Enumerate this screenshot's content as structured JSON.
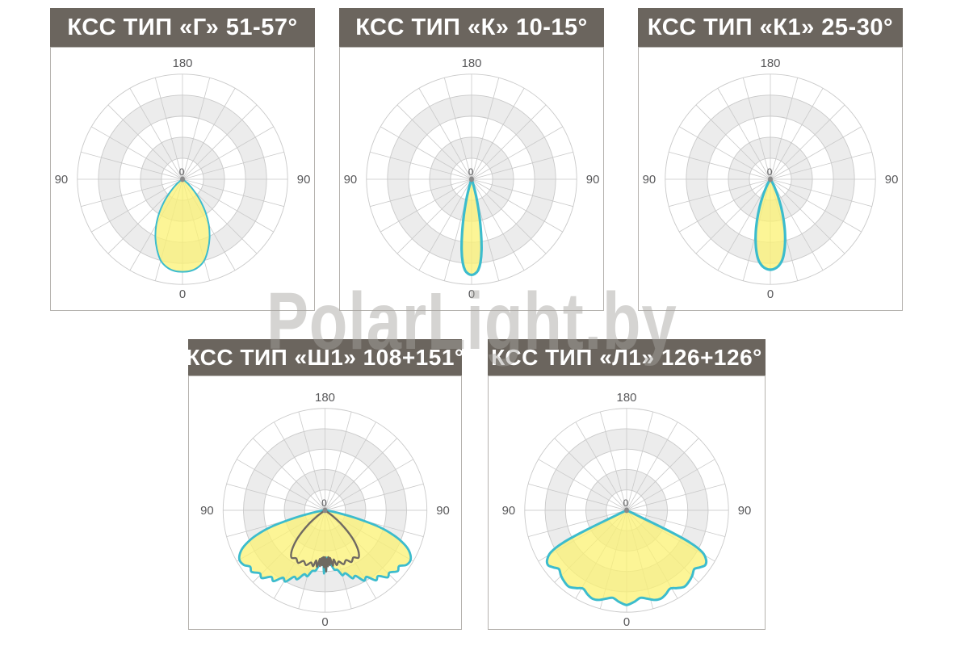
{
  "watermark": "PolarLight.by",
  "colors": {
    "header_bg": "#6b655e",
    "title_text": "#ffffff",
    "panel_border": "#b5b2ae",
    "grid_line": "#c9c9c9",
    "grid_band": "#ececec",
    "axis_label": "#58585a",
    "curve_cyan": "#3cbccd",
    "curve_gray": "#6f6962",
    "lobe_fill": "#fbf173",
    "center_dot": "#8a8a8a"
  },
  "axis_labels": {
    "top": "180",
    "left": "90",
    "right": "90",
    "bottom": "0",
    "center": "0"
  },
  "charts": [
    {
      "title": "КСС ТИП «Г» 51-57°",
      "kcc_type": "Г",
      "beam_angle": "51-57°"
    },
    {
      "title": "КСС ТИП «К» 10-15°",
      "kcc_type": "К",
      "beam_angle": "10-15°"
    },
    {
      "title": "КСС ТИП «К1» 25-30°",
      "kcc_type": "К1",
      "beam_angle": "25-30°"
    },
    {
      "title": "КСС ТИП «Ш1» 108+151°",
      "kcc_type": "Ш1",
      "beam_angle": "108+151°"
    },
    {
      "title": "КСС ТИП «Л1» 126+126°",
      "kcc_type": "Л1",
      "beam_angle": "126+126°"
    }
  ],
  "chart_data": [
    {
      "type": "polar",
      "title": "КСС ТИП «Г» 51-57°",
      "rings": 5,
      "spoke_step_deg": 15,
      "angle_convention": "degrees from nadir (0 = straight down), negative = left",
      "r_unit": "fraction of outer radius",
      "series": [
        {
          "name": "luminous-intensity-curve",
          "color": "#3cbccd",
          "fill": "#fbf173",
          "stroke_width": 2,
          "points": [
            [
              -57,
              0.02
            ],
            [
              -50,
              0.08
            ],
            [
              -45,
              0.15
            ],
            [
              -40,
              0.26
            ],
            [
              -35,
              0.38
            ],
            [
              -30,
              0.5
            ],
            [
              -25,
              0.61
            ],
            [
              -20,
              0.71
            ],
            [
              -15,
              0.8
            ],
            [
              -10,
              0.85
            ],
            [
              -5,
              0.875
            ],
            [
              0,
              0.88
            ],
            [
              5,
              0.875
            ],
            [
              10,
              0.85
            ],
            [
              15,
              0.8
            ],
            [
              20,
              0.71
            ],
            [
              25,
              0.61
            ],
            [
              30,
              0.5
            ],
            [
              35,
              0.38
            ],
            [
              40,
              0.26
            ],
            [
              45,
              0.15
            ],
            [
              50,
              0.08
            ],
            [
              57,
              0.02
            ]
          ]
        }
      ]
    },
    {
      "type": "polar",
      "title": "КСС ТИП «К» 10-15°",
      "rings": 5,
      "spoke_step_deg": 15,
      "angle_convention": "degrees from nadir (0 = straight down), negative = left",
      "r_unit": "fraction of outer radius",
      "series": [
        {
          "name": "luminous-intensity-curve",
          "color": "#3cbccd",
          "fill": "#fbf173",
          "stroke_width": 3.2,
          "points": [
            [
              -20,
              0.02
            ],
            [
              -18,
              0.05
            ],
            [
              -16,
              0.12
            ],
            [
              -14,
              0.22
            ],
            [
              -12,
              0.36
            ],
            [
              -10,
              0.52
            ],
            [
              -8,
              0.68
            ],
            [
              -6,
              0.8
            ],
            [
              -4,
              0.87
            ],
            [
              -2,
              0.9
            ],
            [
              0,
              0.91
            ],
            [
              2,
              0.9
            ],
            [
              4,
              0.87
            ],
            [
              6,
              0.8
            ],
            [
              8,
              0.68
            ],
            [
              10,
              0.52
            ],
            [
              12,
              0.36
            ],
            [
              14,
              0.22
            ],
            [
              16,
              0.12
            ],
            [
              18,
              0.05
            ],
            [
              20,
              0.02
            ]
          ]
        }
      ]
    },
    {
      "type": "polar",
      "title": "КСС ТИП «К1» 25-30°",
      "rings": 5,
      "spoke_step_deg": 15,
      "angle_convention": "degrees from nadir (0 = straight down), negative = left",
      "r_unit": "fraction of outer radius",
      "series": [
        {
          "name": "luminous-intensity-curve",
          "color": "#3cbccd",
          "fill": "#fbf173",
          "stroke_width": 3.2,
          "points": [
            [
              -32,
              0.02
            ],
            [
              -30,
              0.05
            ],
            [
              -27,
              0.1
            ],
            [
              -24,
              0.18
            ],
            [
              -21,
              0.29
            ],
            [
              -18,
              0.41
            ],
            [
              -15,
              0.54
            ],
            [
              -12,
              0.66
            ],
            [
              -9,
              0.76
            ],
            [
              -6,
              0.82
            ],
            [
              -3,
              0.85
            ],
            [
              0,
              0.86
            ],
            [
              3,
              0.85
            ],
            [
              6,
              0.82
            ],
            [
              9,
              0.76
            ],
            [
              12,
              0.66
            ],
            [
              15,
              0.54
            ],
            [
              18,
              0.41
            ],
            [
              21,
              0.29
            ],
            [
              24,
              0.18
            ],
            [
              27,
              0.1
            ],
            [
              30,
              0.05
            ],
            [
              32,
              0.02
            ]
          ]
        }
      ]
    },
    {
      "type": "polar",
      "title": "КСС ТИП «Ш1» 108+151°",
      "rings": 5,
      "spoke_step_deg": 15,
      "angle_convention": "degrees from nadir (0 = straight down), negative = left",
      "r_unit": "fraction of outer radius",
      "series": [
        {
          "name": "luminous-intensity-curve-wide",
          "color": "#3cbccd",
          "fill": "#fbf173",
          "stroke_width": 2.8,
          "points": [
            [
              -82,
              0.03
            ],
            [
              -79,
              0.12
            ],
            [
              -76,
              0.3
            ],
            [
              -73,
              0.55
            ],
            [
              -70,
              0.72
            ],
            [
              -67,
              0.84
            ],
            [
              -64,
              0.92
            ],
            [
              -60,
              0.97
            ],
            [
              -56,
              0.96
            ],
            [
              -53,
              0.92
            ],
            [
              -50,
              0.94
            ],
            [
              -46,
              0.89
            ],
            [
              -43,
              0.91
            ],
            [
              -39,
              0.84
            ],
            [
              -36,
              0.86
            ],
            [
              -32,
              0.78
            ],
            [
              -29,
              0.8
            ],
            [
              -25,
              0.72
            ],
            [
              -22,
              0.73
            ],
            [
              -18,
              0.66
            ],
            [
              -15,
              0.67
            ],
            [
              -12,
              0.61
            ],
            [
              -9,
              0.6
            ],
            [
              -7,
              0.56
            ],
            [
              -5,
              0.52
            ],
            [
              -3,
              0.5
            ],
            [
              -2,
              0.47
            ],
            [
              -1,
              0.62
            ],
            [
              0,
              0.48
            ],
            [
              1,
              0.6
            ],
            [
              2,
              0.47
            ],
            [
              3,
              0.5
            ],
            [
              5,
              0.52
            ],
            [
              7,
              0.55
            ],
            [
              9,
              0.59
            ],
            [
              12,
              0.6
            ],
            [
              15,
              0.66
            ],
            [
              18,
              0.65
            ],
            [
              22,
              0.72
            ],
            [
              25,
              0.71
            ],
            [
              29,
              0.79
            ],
            [
              32,
              0.77
            ],
            [
              36,
              0.85
            ],
            [
              39,
              0.83
            ],
            [
              43,
              0.9
            ],
            [
              46,
              0.88
            ],
            [
              50,
              0.93
            ],
            [
              53,
              0.91
            ],
            [
              56,
              0.96
            ],
            [
              60,
              0.97
            ],
            [
              64,
              0.92
            ],
            [
              67,
              0.84
            ],
            [
              70,
              0.72
            ],
            [
              73,
              0.55
            ],
            [
              76,
              0.3
            ],
            [
              79,
              0.12
            ],
            [
              82,
              0.03
            ]
          ]
        },
        {
          "name": "luminous-intensity-curve-cross-plane",
          "color": "#6f6962",
          "fill": "none",
          "stroke_width": 2.4,
          "points": [
            [
              -55,
              0.03
            ],
            [
              -53,
              0.1
            ],
            [
              -50,
              0.2
            ],
            [
              -47,
              0.3
            ],
            [
              -44,
              0.4
            ],
            [
              -41,
              0.48
            ],
            [
              -38,
              0.54
            ],
            [
              -35,
              0.57
            ],
            [
              -31,
              0.55
            ],
            [
              -27,
              0.58
            ],
            [
              -23,
              0.54
            ],
            [
              -19,
              0.57
            ],
            [
              -15,
              0.53
            ],
            [
              -12,
              0.56
            ],
            [
              -10,
              0.5
            ],
            [
              -8,
              0.56
            ],
            [
              -6,
              0.48
            ],
            [
              -5,
              0.55
            ],
            [
              -4,
              0.47
            ],
            [
              -3,
              0.54
            ],
            [
              -2,
              0.46
            ],
            [
              -1,
              0.56
            ],
            [
              0,
              0.46
            ],
            [
              1,
              0.6
            ],
            [
              2,
              0.48
            ],
            [
              3,
              0.55
            ],
            [
              4,
              0.46
            ],
            [
              5,
              0.54
            ],
            [
              6,
              0.47
            ],
            [
              8,
              0.55
            ],
            [
              10,
              0.49
            ],
            [
              12,
              0.55
            ],
            [
              15,
              0.52
            ],
            [
              19,
              0.56
            ],
            [
              23,
              0.53
            ],
            [
              27,
              0.57
            ],
            [
              31,
              0.54
            ],
            [
              35,
              0.57
            ],
            [
              38,
              0.54
            ],
            [
              41,
              0.48
            ],
            [
              44,
              0.4
            ],
            [
              47,
              0.3
            ],
            [
              50,
              0.2
            ],
            [
              53,
              0.1
            ],
            [
              55,
              0.03
            ]
          ]
        }
      ]
    },
    {
      "type": "polar",
      "title": "КСС ТИП «Л1» 126+126°",
      "rings": 5,
      "spoke_step_deg": 15,
      "angle_convention": "degrees from nadir (0 = straight down), negative = left",
      "r_unit": "fraction of outer radius",
      "series": [
        {
          "name": "luminous-intensity-curve",
          "color": "#3cbccd",
          "fill": "#fbf173",
          "stroke_width": 3,
          "points": [
            [
              -65,
              0.05
            ],
            [
              -64,
              0.45
            ],
            [
              -63,
              0.7
            ],
            [
              -61,
              0.85
            ],
            [
              -58,
              0.92
            ],
            [
              -55,
              0.94
            ],
            [
              -52,
              0.91
            ],
            [
              -49,
              0.88
            ],
            [
              -45,
              0.91
            ],
            [
              -41,
              0.93
            ],
            [
              -37,
              0.94
            ],
            [
              -33,
              0.91
            ],
            [
              -29,
              0.88
            ],
            [
              -25,
              0.91
            ],
            [
              -21,
              0.93
            ],
            [
              -17,
              0.92
            ],
            [
              -13,
              0.89
            ],
            [
              -9,
              0.87
            ],
            [
              -5,
              0.9
            ],
            [
              -2,
              0.92
            ],
            [
              0,
              0.93
            ],
            [
              2,
              0.92
            ],
            [
              5,
              0.9
            ],
            [
              9,
              0.87
            ],
            [
              13,
              0.89
            ],
            [
              17,
              0.92
            ],
            [
              21,
              0.93
            ],
            [
              25,
              0.91
            ],
            [
              29,
              0.88
            ],
            [
              33,
              0.91
            ],
            [
              37,
              0.94
            ],
            [
              41,
              0.93
            ],
            [
              45,
              0.91
            ],
            [
              49,
              0.88
            ],
            [
              52,
              0.91
            ],
            [
              55,
              0.94
            ],
            [
              58,
              0.92
            ],
            [
              61,
              0.85
            ],
            [
              63,
              0.7
            ],
            [
              64,
              0.45
            ],
            [
              65,
              0.05
            ]
          ]
        }
      ]
    }
  ]
}
